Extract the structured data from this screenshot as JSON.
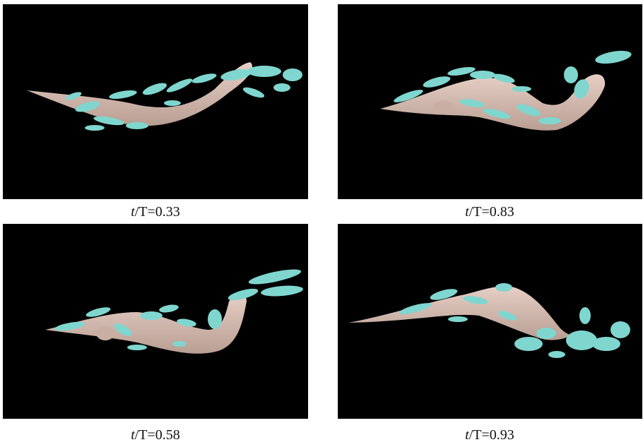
{
  "colors": {
    "background": "#000000",
    "body": "#d9bfb4",
    "vortex": "#7fd6cf"
  },
  "panels": [
    {
      "t_label": "t",
      "rest": "/T=0.33"
    },
    {
      "t_label": "t",
      "rest": "/T=0.83"
    },
    {
      "t_label": "t",
      "rest": "/T=0.58"
    },
    {
      "t_label": "t",
      "rest": "/T=0.93"
    }
  ]
}
